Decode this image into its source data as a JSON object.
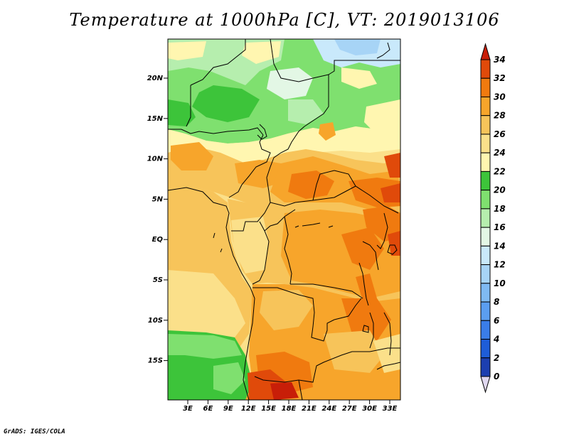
{
  "title": "Temperature at 1000hPa [C], VT: 2019013106",
  "credit": "GrADS: IGES/COLA",
  "lat_ticks": [
    "20N",
    "15N",
    "10N",
    "5N",
    "EQ",
    "5S",
    "10S",
    "15S"
  ],
  "lon_ticks": [
    "3E",
    "6E",
    "9E",
    "12E",
    "15E",
    "18E",
    "21E",
    "24E",
    "27E",
    "30E",
    "33E"
  ],
  "colorbar": {
    "values": [
      "0",
      "2",
      "4",
      "6",
      "8",
      "10",
      "12",
      "14",
      "16",
      "18",
      "20",
      "22",
      "24",
      "26",
      "28",
      "30",
      "32",
      "34"
    ],
    "colors": [
      "#0a1a7a",
      "#1c3fb0",
      "#1e5dd8",
      "#3a7de8",
      "#5b9ef0",
      "#7fbaf2",
      "#a7d4f6",
      "#c9e9fb",
      "#e3f7e5",
      "#b6eeae",
      "#7fe06f",
      "#3dc43a",
      "#fff6b0",
      "#fbe08a",
      "#f7c45a",
      "#f7a52b",
      "#f07a0f",
      "#e04a0a",
      "#c81e08"
    ],
    "under_color": "#e0d8f0"
  }
}
